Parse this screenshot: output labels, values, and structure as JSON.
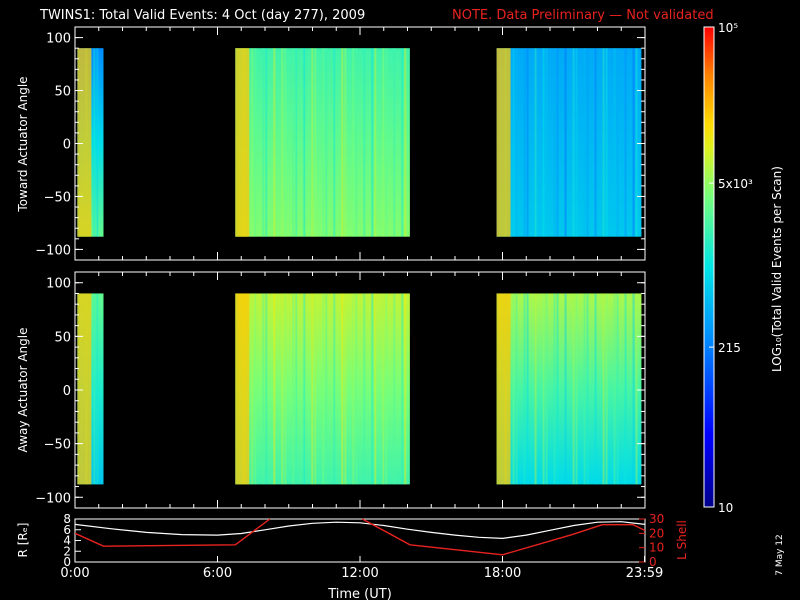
{
  "header": {
    "title": "TWINS1: Total Valid Events:  4 Oct (day 277), 2009",
    "note": "NOTE. Data Preliminary — Not validated"
  },
  "colors": {
    "note": "#e8231f",
    "axes": "#ffffff",
    "background": "#000000",
    "lshell": "#e8231f",
    "radius": "#ffffff"
  },
  "chart_data": [
    {
      "type": "heatmap",
      "panel": "toward",
      "ylabel": "Toward Actuator Angle",
      "ylim": [
        -110,
        110
      ],
      "yticks": [
        "100",
        "50",
        "0",
        "−50",
        "−100"
      ],
      "x_range_hours": [
        0,
        24
      ],
      "data_intervals": [
        {
          "start": 0.1,
          "end": 1.2,
          "level_top": 0.35,
          "level_bottom": 0.62
        },
        {
          "start": 6.75,
          "end": 14.1,
          "level_top": 0.58,
          "level_bottom": 0.66
        },
        {
          "start": 17.75,
          "end": 23.85,
          "level_top": 0.4,
          "level_bottom": 0.45
        }
      ]
    },
    {
      "type": "heatmap",
      "panel": "away",
      "ylabel": "Away Actuator Angle",
      "ylim": [
        -110,
        110
      ],
      "yticks": [
        "100",
        "50",
        "0",
        "−50",
        "−100"
      ],
      "x_range_hours": [
        0,
        24
      ],
      "data_intervals": [
        {
          "start": 0.1,
          "end": 1.2,
          "level_top": 0.62,
          "level_bottom": 0.45
        },
        {
          "start": 6.75,
          "end": 14.1,
          "level_top": 0.72,
          "level_bottom": 0.58
        },
        {
          "start": 17.75,
          "end": 23.85,
          "level_top": 0.7,
          "level_bottom": 0.48
        }
      ]
    },
    {
      "type": "line",
      "panel": "orbit",
      "ylabel": "R [Rₑ]",
      "ylabel_right": "L Shell",
      "ylim_left": [
        0,
        8
      ],
      "ylim_right": [
        0,
        30
      ],
      "yticks_left": [
        "8",
        "6",
        "4",
        "2",
        "0"
      ],
      "yticks_right": [
        "30",
        "20",
        "10",
        "0"
      ],
      "xticks": [
        "0:00",
        "6:00",
        "12:00",
        "18:00",
        "23:59"
      ],
      "xlabel": "Time (UT)",
      "series": [
        {
          "x": [
            0,
            1.5,
            3,
            4.5,
            6,
            7,
            8,
            9,
            10,
            11,
            12,
            13,
            14,
            15,
            16,
            17,
            18,
            19,
            20,
            21,
            22,
            23,
            24
          ],
          "values": [
            7.0,
            6.2,
            5.5,
            5.1,
            5.0,
            5.3,
            6.0,
            6.7,
            7.2,
            7.4,
            7.3,
            6.8,
            6.1,
            5.5,
            5.0,
            4.6,
            4.4,
            5.0,
            5.9,
            6.8,
            7.4,
            7.5,
            7.0
          ]
        },
        {
          "x": [
            0,
            1.2,
            6.75,
            8.2
          ],
          "values": [
            20,
            11,
            12,
            30
          ]
        },
        {
          "x": [
            12.1,
            14.1,
            18,
            20.9,
            22.2,
            23.5,
            24
          ],
          "values": [
            30,
            12,
            5,
            19,
            26,
            26,
            22
          ]
        }
      ]
    },
    {
      "type": "heatmap",
      "panel": "colorbar",
      "ylabel": "LOG₁₀(Total Valid  Events per Scan)",
      "scale": "log",
      "range": [
        10,
        100000
      ],
      "tick_labels": [
        "10⁵",
        "5x10³",
        "215",
        "10"
      ],
      "tick_values": [
        100000,
        5000,
        215,
        10
      ]
    }
  ],
  "datestamp": "7 May 12"
}
